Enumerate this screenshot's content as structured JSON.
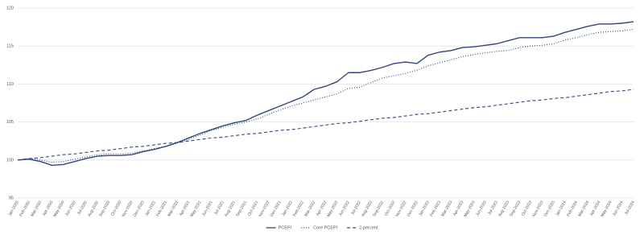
{
  "chart_data": {
    "type": "line",
    "categories": [
      "Jan-2020",
      "Feb-2020",
      "Mar-2020",
      "Apr-2020",
      "May-2020",
      "Jun-2020",
      "Jul-2020",
      "Aug-2020",
      "Sep-2020",
      "Oct-2020",
      "Nov-2020",
      "Dec-2020",
      "Jan-2021",
      "Feb-2021",
      "Mar-2021",
      "Apr-2021",
      "May-2021",
      "Jun-2021",
      "Jul-2021",
      "Aug-2021",
      "Sep-2021",
      "Oct-2021",
      "Nov-2021",
      "Dec-2021",
      "Jan-2022",
      "Feb-2022",
      "Mar-2022",
      "Apr-2022",
      "May-2022",
      "Jun-2022",
      "Jul-2022",
      "Aug-2022",
      "Sep-2022",
      "Oct-2022",
      "Nov-2022",
      "Dec-2022",
      "Jan-2023",
      "Feb-2023",
      "Mar-2023",
      "Apr-2023",
      "May-2023",
      "Jun-2023",
      "Jul-2023",
      "Aug-2023",
      "Sep-2023",
      "Oct-2023",
      "Nov-2023",
      "Dec-2023",
      "Jan-2024",
      "Feb-2024",
      "Mar-2024",
      "Apr-2024",
      "May-2024",
      "Jun-2024",
      "Jul-2024"
    ],
    "series": [
      {
        "name": "PCEPI",
        "color": "#34467d",
        "style": "solid",
        "values": [
          100,
          100.1,
          99.8,
          99.3,
          99.4,
          99.8,
          100.2,
          100.5,
          100.6,
          100.6,
          100.7,
          101.1,
          101.4,
          101.8,
          102.3,
          102.9,
          103.5,
          104.0,
          104.5,
          104.9,
          105.2,
          105.9,
          106.5,
          107.1,
          107.7,
          108.3,
          109.3,
          109.7,
          110.3,
          111.5,
          111.5,
          111.8,
          112.2,
          112.7,
          112.9,
          112.7,
          113.8,
          114.2,
          114.4,
          114.8,
          114.9,
          115.1,
          115.3,
          115.7,
          116.1,
          116.1,
          116.1,
          116.3,
          116.8,
          117.2,
          117.6,
          117.9,
          117.9,
          118.0,
          118.2
        ]
      },
      {
        "name": "Core PCEPI",
        "color": "#34467d",
        "style": "dotted",
        "values": [
          100,
          100.2,
          100.0,
          99.7,
          99.8,
          100.1,
          100.4,
          100.7,
          100.8,
          100.8,
          100.9,
          101.2,
          101.5,
          101.8,
          102.2,
          102.7,
          103.3,
          103.9,
          104.3,
          104.7,
          105.0,
          105.4,
          106.0,
          106.6,
          107.1,
          107.5,
          107.9,
          108.3,
          108.7,
          109.4,
          109.6,
          110.2,
          110.8,
          111.1,
          111.4,
          111.8,
          112.4,
          112.8,
          113.2,
          113.6,
          113.9,
          114.1,
          114.3,
          114.4,
          114.8,
          115.0,
          115.1,
          115.3,
          115.8,
          116.1,
          116.5,
          116.8,
          116.9,
          117.0,
          117.2
        ]
      },
      {
        "name": "2-percent",
        "color": "#34467d",
        "style": "dashed",
        "values": [
          100,
          100.2,
          100.3,
          100.5,
          100.7,
          100.8,
          101.0,
          101.2,
          101.3,
          101.5,
          101.7,
          101.8,
          102.0,
          102.2,
          102.3,
          102.5,
          102.7,
          102.9,
          103.0,
          103.2,
          103.4,
          103.5,
          103.7,
          103.9,
          104.0,
          104.2,
          104.4,
          104.6,
          104.8,
          104.9,
          105.1,
          105.3,
          105.5,
          105.6,
          105.8,
          106.0,
          106.1,
          106.3,
          106.5,
          106.7,
          106.9,
          107.0,
          107.2,
          107.4,
          107.6,
          107.8,
          107.9,
          108.1,
          108.2,
          108.4,
          108.6,
          108.8,
          109.0,
          109.1,
          109.3
        ]
      }
    ],
    "ylim": [
      95,
      120
    ],
    "yticks": [
      95,
      100,
      105,
      110,
      115,
      120
    ],
    "grid": true,
    "legend": "bottom"
  }
}
